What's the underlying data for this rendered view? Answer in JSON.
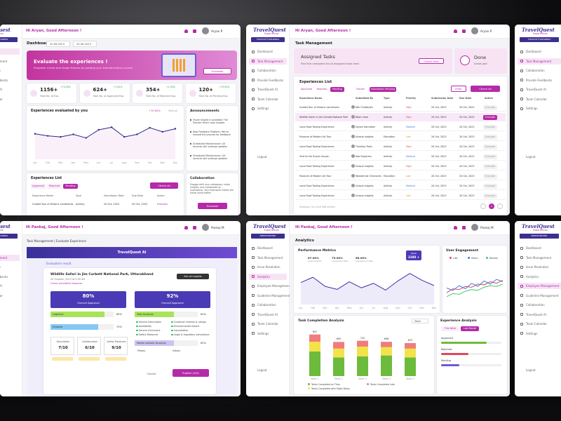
{
  "brand": "TravelQuest",
  "brand_sub": "Experiences",
  "roles": [
    "Content Evaluators",
    "Administrator"
  ],
  "nav_evaluator": [
    "Dashboard",
    "Task Management",
    "Collaboration",
    "Provide Feedbacks",
    "TravelQuest AI",
    "Team Calendar",
    "Settings"
  ],
  "nav_admin": [
    "Dashboard",
    "Task Management",
    "Issue Resolution",
    "Analytics",
    "Employee Management",
    "Guideline Management",
    "Collaboration",
    "TravelQuest AI",
    "Team Calendar",
    "Settings"
  ],
  "logout": "Logout",
  "dashboard": {
    "greeting": "Hi Aryan, Good Afternoon !",
    "user": "Aryan P.",
    "title": "Dashboard",
    "date_from": "20-06-2023",
    "date_to": "20-06-2023",
    "banner": {
      "title": "Evaluate the experiences !",
      "text": "Empower minds and shape futures by grading your transformative course.",
      "button": "Evaluate"
    },
    "stats": [
      {
        "value": "1156+",
        "change": "+70.00%",
        "label": "Total No. of Exp."
      },
      {
        "value": "624+",
        "change": "+1.05%",
        "label": "Total No. of Approved Exp."
      },
      {
        "value": "354+",
        "change": "+2.30%",
        "label": "Total No. of Rejected Exp."
      },
      {
        "value": "120+",
        "change": "+70.00%",
        "label": "Total No. of Pending Exp."
      }
    ],
    "chart": {
      "type": "line",
      "title": "Experiences evaluated by you",
      "change": "+70.00%",
      "period": "View all",
      "categories": [
        "Jan",
        "Feb",
        "Mar",
        "Apr",
        "May",
        "Jun",
        "Jul",
        "Aug",
        "Sep",
        "Oct",
        "Nov",
        "Dec"
      ],
      "values": [
        50,
        46,
        44,
        49,
        42,
        58,
        63,
        44,
        49,
        62,
        54,
        60
      ],
      "ylim": [
        0,
        80
      ],
      "color": "#2e2a8c"
    },
    "announcements": {
      "title": "Announcements",
      "items": [
        "Travel Insight is available: The Tourism Hive's new chapter",
        "New Feedback Platform: We've revised the process for feedback",
        "Scheduled Maintenance: UX services will undergo updates",
        "Scheduled Maintenance: UX services will undergo updates"
      ]
    },
    "list": {
      "title": "Experiences List",
      "tabs": [
        "Approved",
        "Rejected",
        "Pending"
      ],
      "button": "Check all",
      "columns": [
        "Experience Name",
        "Type",
        "Submission Date",
        "Due Date",
        "Action"
      ],
      "row": [
        "Guided Tour of Historic Landmarks",
        "Activity",
        "20 Oct, 2023",
        "20 Oct, 2023",
        "Evaluate"
      ]
    },
    "collaboration": {
      "title": "Collaboration",
      "text": "Engage with your colleagues, share insights, and collaborate on evaluations. Your teamwork makes the travel world better.",
      "button": "Evaluate"
    }
  },
  "tasks": {
    "greeting": "Hi Aryan, Good Afternoon !",
    "user": "Aryan P.",
    "title": "Task Management",
    "assigned": {
      "title": "Assigned Tasks",
      "text": "Find the complete list of assigned task here.",
      "button": "Check here"
    },
    "done": {
      "title": "Done",
      "text": "Great job!"
    },
    "list": {
      "title": "Experiences List",
      "tabs": [
        "Approved",
        "Rejected",
        "Pending",
        "Tracker",
        "Submission Pending"
      ],
      "filter": "Filter",
      "button": "Check all",
      "columns": [
        "Experience Name",
        "Submitted By",
        "Type",
        "Priority",
        "Submission Date",
        "Due Date",
        "Action"
      ],
      "rows": [
        [
          "Guided Tour of Historic Landmarks",
          "Niki Chatterjee",
          "Activity",
          "High",
          "20 Oct, 2023",
          "20 Oct, 2023",
          "Evaluate"
        ],
        [
          "Wildlife Safari in Jim Corbett National Park",
          "Nilam Vora",
          "Activity",
          "High",
          "20 Oct, 2023",
          "20 Oct, 2023",
          "Evaluate"
        ],
        [
          "Local Food Tasting Experience",
          "Sayoni Karmakar",
          "Activity",
          "Medium",
          "20 Oct, 2023",
          "20 Oct, 2023",
          "Evaluate"
        ],
        [
          "Museum of Modern Art Tour",
          "Unique Insights",
          "Education",
          "Low",
          "20 Oct, 2023",
          "20 Oct, 2023",
          "Evaluate"
        ],
        [
          "Local Food Tasting Experience",
          "Timeless Trails",
          "Activity",
          "High",
          "20 Oct, 2023",
          "20 Oct, 2023",
          "Evaluate"
        ],
        [
          "Visit to the Grand Canyon",
          "Ada Explorers",
          "Activity",
          "Medium",
          "20 Oct, 2023",
          "20 Oct, 2023",
          "Evaluate"
        ],
        [
          "Local Food Tasting Experience",
          "Unique Insights",
          "Activity",
          "High",
          "20 Oct, 2023",
          "20 Oct, 2023",
          "Evaluate"
        ],
        [
          "Museum of Modern Art Tour",
          "Wanderlust Chronicles",
          "Education",
          "Low",
          "20 Oct, 2023",
          "20 Oct, 2023",
          "Evaluate"
        ],
        [
          "Local Food Tasting Experience",
          "Unique Insights",
          "Activity",
          "Medium",
          "20 Oct, 2023",
          "20 Oct, 2023",
          "Evaluate"
        ],
        [
          "Local Food Tasting Experience",
          "Unique Insights",
          "Activity",
          "Low",
          "20 Oct, 2023",
          "20 Oct, 2023",
          "Evaluate"
        ]
      ],
      "footer": "Showing 1 to 10 of 300 entries",
      "page": "1"
    }
  },
  "evaluate": {
    "greeting": "Hi Pankaj, Good Afternoon !",
    "user": "Pankaj M",
    "breadcrumb": "Task Management | Evaluate Experience",
    "banner": "TravelQuest AI",
    "heading": "Evaluation result",
    "experience": "Wildlife Safari in Jim Corbett National Park, Uttarakhand",
    "date": "20 October, 2023 at 9:30 AM",
    "link": "Check submitted response",
    "insights": "See all insights",
    "scores": [
      {
        "value": 80,
        "value_label": "80%",
        "label": "Overall Approval"
      },
      {
        "value": 92,
        "value_label": "92%",
        "label": "Overall Approval"
      }
    ],
    "left_bars": [
      {
        "label": "Logistics",
        "value": 85,
        "value_label": "85%",
        "color": "#a8e35c"
      },
      {
        "label": "Impacts",
        "value": 75,
        "value_label": "75%",
        "color": "#86c8f2"
      }
    ],
    "task_bar": {
      "label": "Task Analysis",
      "value": 62,
      "value_label": "62%",
      "color": "#a8e35c"
    },
    "checklist": [
      "Service Description",
      "Availability",
      "Service Exclusions",
      "Safety Measures",
      "Customer reviews & ratings",
      "Environmental Impact",
      "Cancellation",
      "Legal & regulatory compliance"
    ],
    "media_bar": {
      "label": "Media content Analysis",
      "value": 62,
      "value_label": "62%",
      "color": "#c9c4f2"
    },
    "media": [
      "Photos",
      "Videos"
    ],
    "ratings": [
      {
        "label": "Description",
        "value": "7/10"
      },
      {
        "label": "Collaboration",
        "value": "6/10"
      },
      {
        "label": "Safety Measures",
        "value": "9/10"
      }
    ],
    "cancel": "Cancel",
    "publish": "Publish (3/3)"
  },
  "analytics": {
    "greeting": "Hi Pankaj, Good Afternoon !",
    "user": "Pankaj M",
    "title": "Analytics",
    "performance": {
      "type": "line",
      "title": "Performance Metrics",
      "metrics": [
        {
          "value": "87.00%",
          "label": "Approval Rate"
        },
        {
          "value": "75.00%",
          "label": "Completion Rate"
        },
        {
          "value": "68.00%",
          "label": "Engagement Rate"
        }
      ],
      "categories": [
        "Jan",
        "Feb",
        "Mar",
        "Apr",
        "May",
        "Jun",
        "Jul",
        "Aug",
        "Sep",
        "Oct",
        "Nov",
        "Dec"
      ],
      "values": [
        58,
        72,
        48,
        40,
        60,
        44,
        56,
        38,
        62,
        82,
        64,
        50
      ],
      "ylim": [
        0,
        100
      ],
      "color": "#3b34a8",
      "tooltip": [
        "Week",
        "3208 +"
      ]
    },
    "engagement": {
      "type": "line",
      "title": "User Engagement",
      "ylim": [
        0,
        100
      ],
      "series": [
        {
          "name": "Like",
          "color": "#e0475c",
          "values": [
            30,
            40,
            38,
            46,
            44,
            52,
            50,
            58,
            54,
            62
          ]
        },
        {
          "name": "Share",
          "color": "#3a7be0",
          "values": [
            42,
            36,
            48,
            40,
            54,
            46,
            60,
            52,
            64,
            58
          ]
        },
        {
          "name": "Review",
          "color": "#4cc26a",
          "values": [
            20,
            28,
            26,
            34,
            38,
            36,
            44,
            48,
            46,
            52
          ]
        }
      ]
    },
    "task_completion": {
      "type": "bar",
      "title": "Task Completion Analysis",
      "filter": "Week",
      "categories": [
        "Week 1",
        "Week 2",
        "Week 3",
        "Week 4",
        "Week 5"
      ],
      "ylim": [
        0,
        1000
      ],
      "series": [
        {
          "name": "Tasks Completed on Time",
          "color": "#6dbb3c",
          "values": [
            500,
            380,
            400,
            420,
            380
          ]
        },
        {
          "name": "Tasks Completed with Slight Delay",
          "color": "#f2e34a",
          "values": [
            200,
            180,
            200,
            170,
            180
          ]
        },
        {
          "name": "Tasks Completed Late",
          "color": "#f07c7c",
          "values": [
            147,
            135,
            120,
            108,
            112
          ]
        }
      ],
      "total_labels": [
        "847",
        "695",
        "720",
        "698",
        "672"
      ]
    },
    "experience": {
      "title": "Experience Analysis",
      "tabs": [
        "This Week",
        "Last Month"
      ],
      "items": [
        {
          "label": "Approved",
          "value": 75,
          "color": "#6dbb3c"
        },
        {
          "label": "Rejected",
          "value": 45,
          "color": "#e0475c"
        },
        {
          "label": "Pending",
          "value": 30,
          "color": "#6b5cd6"
        }
      ],
      "xlim": [
        0,
        100
      ]
    }
  }
}
